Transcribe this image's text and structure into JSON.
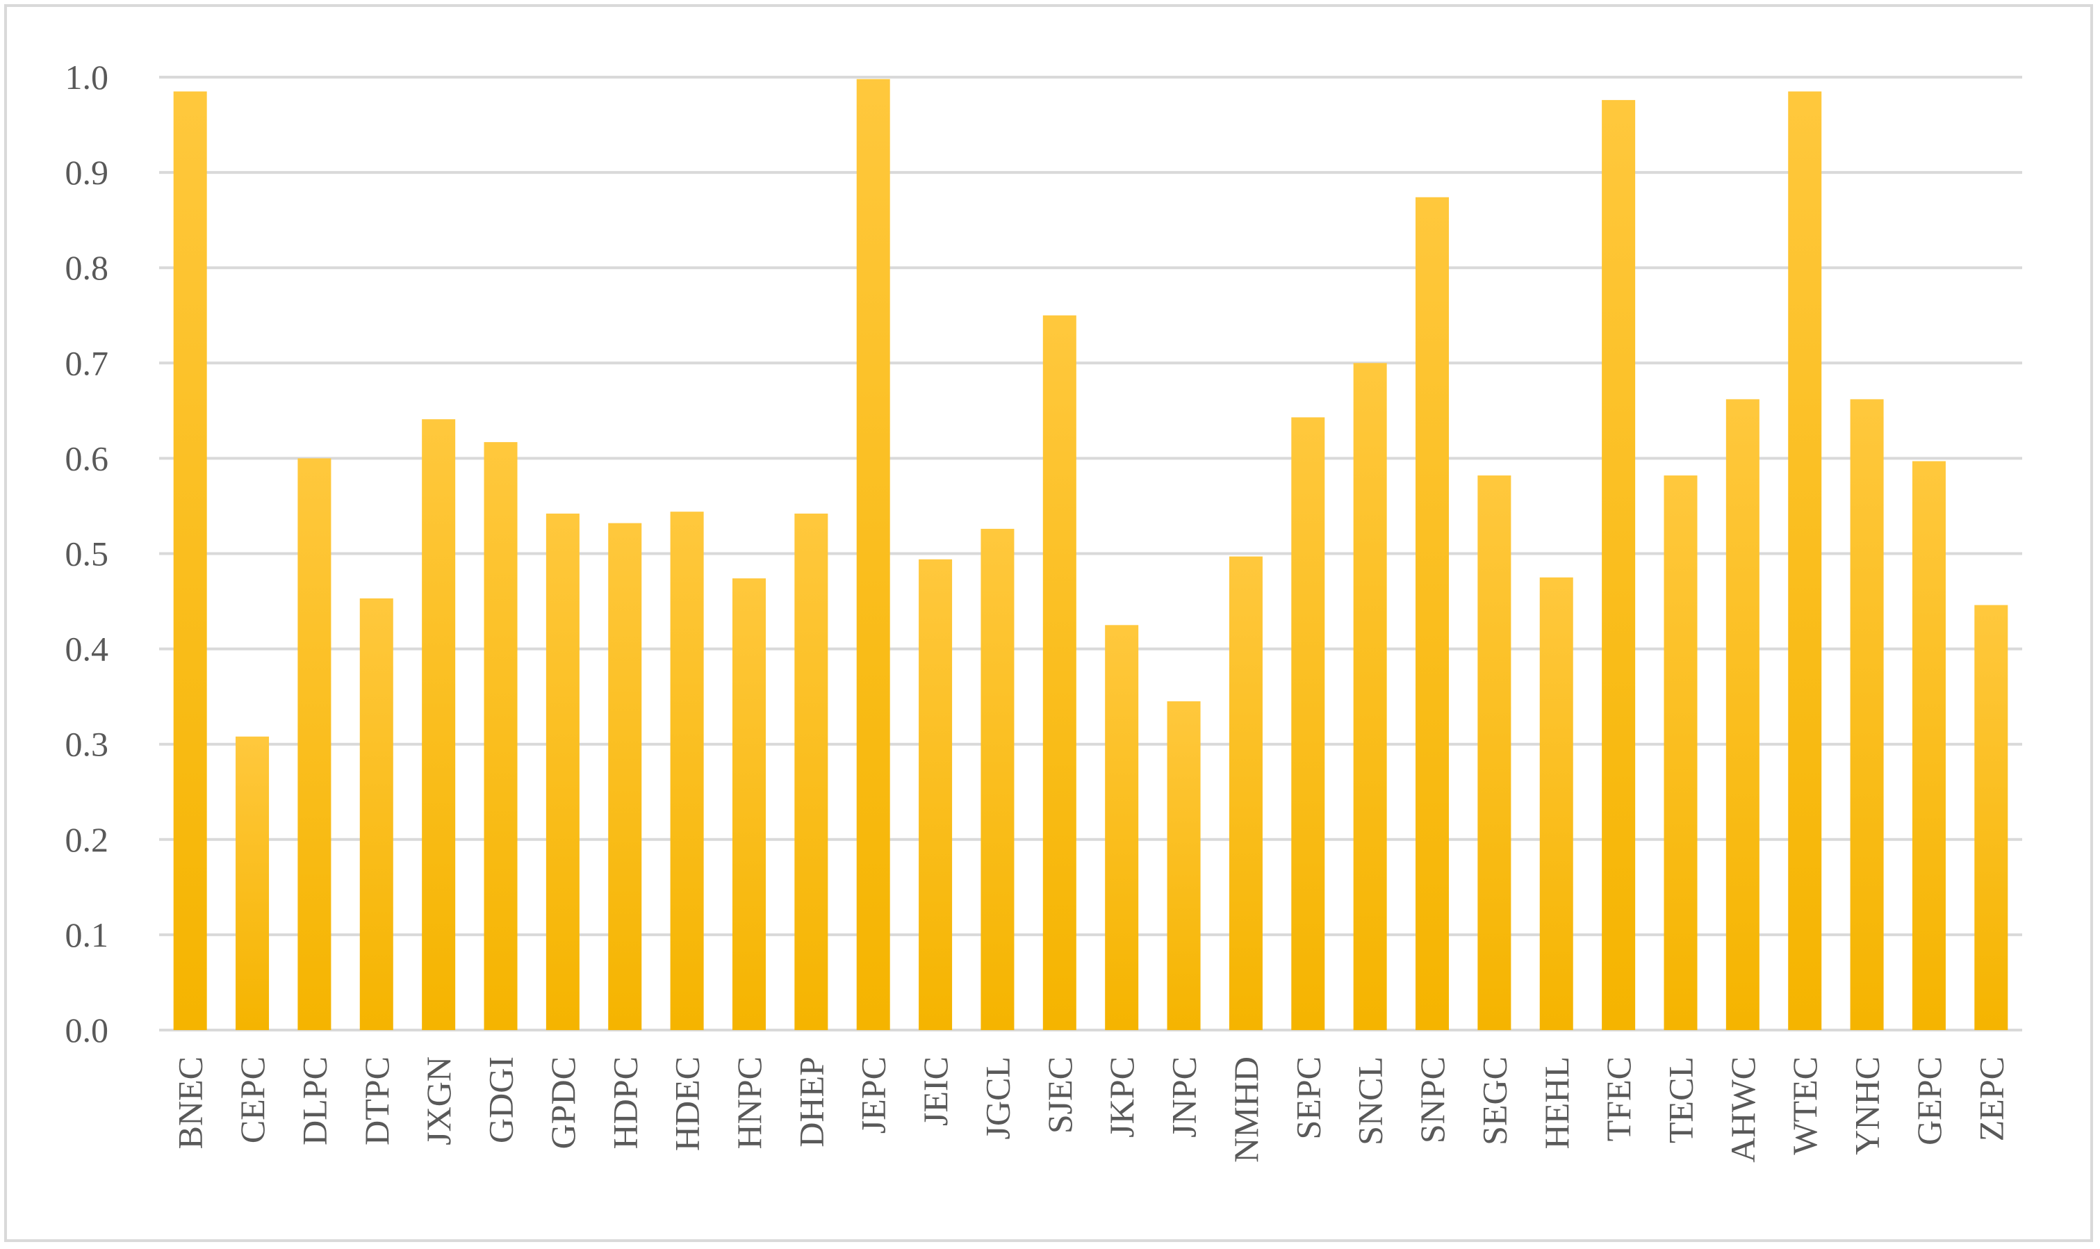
{
  "chart_data": {
    "type": "bar",
    "categories": [
      "BNEC",
      "CEPC",
      "DLPC",
      "DTPC",
      "JXGN",
      "GDGI",
      "GPDC",
      "HDPC",
      "HDEC",
      "HNPC",
      "DHEP",
      "JEPC",
      "JEIC",
      "JGCL",
      "SJEC",
      "JKPC",
      "JNPC",
      "NMHD",
      "SEPC",
      "SNCL",
      "SNPC",
      "SEGC",
      "HEHL",
      "TFEC",
      "TECL",
      "AHWC",
      "WTEC",
      "YNHC",
      "GEPC",
      "ZEPC"
    ],
    "values": [
      0.985,
      0.308,
      0.6,
      0.453,
      0.641,
      0.617,
      0.542,
      0.532,
      0.544,
      0.474,
      0.542,
      0.998,
      0.494,
      0.526,
      0.75,
      0.425,
      0.345,
      0.497,
      0.643,
      0.7,
      0.874,
      0.582,
      0.475,
      0.976,
      0.582,
      0.662,
      0.985,
      0.662,
      0.597,
      0.446
    ],
    "ylim": [
      0,
      1.0
    ],
    "yticks": [
      "0.0",
      "0.1",
      "0.2",
      "0.3",
      "0.4",
      "0.5",
      "0.6",
      "0.7",
      "0.8",
      "0.9",
      "1.0"
    ],
    "title": "",
    "xlabel": "",
    "ylabel": "",
    "grid": true,
    "legend": "none",
    "colors": {
      "bar_top": "#ffc83d",
      "bar_bottom": "#f5b400",
      "grid": "#d9d9d9",
      "text": "#595959"
    }
  }
}
